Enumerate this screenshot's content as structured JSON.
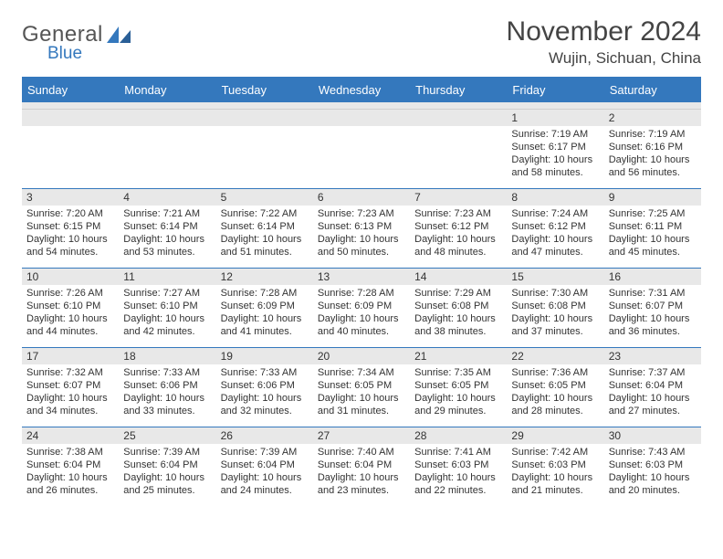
{
  "logo": {
    "word1": "General",
    "word2": "Blue"
  },
  "title": "November 2024",
  "location": "Wujin, Sichuan, China",
  "header_bg": "#3478bd",
  "border_color": "#3478bd",
  "band_bg": "#e8e8e8",
  "text_color": "#333333",
  "weekdays": [
    "Sunday",
    "Monday",
    "Tuesday",
    "Wednesday",
    "Thursday",
    "Friday",
    "Saturday"
  ],
  "weeks": [
    [
      null,
      null,
      null,
      null,
      null,
      {
        "n": "1",
        "sr": "Sunrise: 7:19 AM",
        "ss": "Sunset: 6:17 PM",
        "d1": "Daylight: 10 hours",
        "d2": "and 58 minutes."
      },
      {
        "n": "2",
        "sr": "Sunrise: 7:19 AM",
        "ss": "Sunset: 6:16 PM",
        "d1": "Daylight: 10 hours",
        "d2": "and 56 minutes."
      }
    ],
    [
      {
        "n": "3",
        "sr": "Sunrise: 7:20 AM",
        "ss": "Sunset: 6:15 PM",
        "d1": "Daylight: 10 hours",
        "d2": "and 54 minutes."
      },
      {
        "n": "4",
        "sr": "Sunrise: 7:21 AM",
        "ss": "Sunset: 6:14 PM",
        "d1": "Daylight: 10 hours",
        "d2": "and 53 minutes."
      },
      {
        "n": "5",
        "sr": "Sunrise: 7:22 AM",
        "ss": "Sunset: 6:14 PM",
        "d1": "Daylight: 10 hours",
        "d2": "and 51 minutes."
      },
      {
        "n": "6",
        "sr": "Sunrise: 7:23 AM",
        "ss": "Sunset: 6:13 PM",
        "d1": "Daylight: 10 hours",
        "d2": "and 50 minutes."
      },
      {
        "n": "7",
        "sr": "Sunrise: 7:23 AM",
        "ss": "Sunset: 6:12 PM",
        "d1": "Daylight: 10 hours",
        "d2": "and 48 minutes."
      },
      {
        "n": "8",
        "sr": "Sunrise: 7:24 AM",
        "ss": "Sunset: 6:12 PM",
        "d1": "Daylight: 10 hours",
        "d2": "and 47 minutes."
      },
      {
        "n": "9",
        "sr": "Sunrise: 7:25 AM",
        "ss": "Sunset: 6:11 PM",
        "d1": "Daylight: 10 hours",
        "d2": "and 45 minutes."
      }
    ],
    [
      {
        "n": "10",
        "sr": "Sunrise: 7:26 AM",
        "ss": "Sunset: 6:10 PM",
        "d1": "Daylight: 10 hours",
        "d2": "and 44 minutes."
      },
      {
        "n": "11",
        "sr": "Sunrise: 7:27 AM",
        "ss": "Sunset: 6:10 PM",
        "d1": "Daylight: 10 hours",
        "d2": "and 42 minutes."
      },
      {
        "n": "12",
        "sr": "Sunrise: 7:28 AM",
        "ss": "Sunset: 6:09 PM",
        "d1": "Daylight: 10 hours",
        "d2": "and 41 minutes."
      },
      {
        "n": "13",
        "sr": "Sunrise: 7:28 AM",
        "ss": "Sunset: 6:09 PM",
        "d1": "Daylight: 10 hours",
        "d2": "and 40 minutes."
      },
      {
        "n": "14",
        "sr": "Sunrise: 7:29 AM",
        "ss": "Sunset: 6:08 PM",
        "d1": "Daylight: 10 hours",
        "d2": "and 38 minutes."
      },
      {
        "n": "15",
        "sr": "Sunrise: 7:30 AM",
        "ss": "Sunset: 6:08 PM",
        "d1": "Daylight: 10 hours",
        "d2": "and 37 minutes."
      },
      {
        "n": "16",
        "sr": "Sunrise: 7:31 AM",
        "ss": "Sunset: 6:07 PM",
        "d1": "Daylight: 10 hours",
        "d2": "and 36 minutes."
      }
    ],
    [
      {
        "n": "17",
        "sr": "Sunrise: 7:32 AM",
        "ss": "Sunset: 6:07 PM",
        "d1": "Daylight: 10 hours",
        "d2": "and 34 minutes."
      },
      {
        "n": "18",
        "sr": "Sunrise: 7:33 AM",
        "ss": "Sunset: 6:06 PM",
        "d1": "Daylight: 10 hours",
        "d2": "and 33 minutes."
      },
      {
        "n": "19",
        "sr": "Sunrise: 7:33 AM",
        "ss": "Sunset: 6:06 PM",
        "d1": "Daylight: 10 hours",
        "d2": "and 32 minutes."
      },
      {
        "n": "20",
        "sr": "Sunrise: 7:34 AM",
        "ss": "Sunset: 6:05 PM",
        "d1": "Daylight: 10 hours",
        "d2": "and 31 minutes."
      },
      {
        "n": "21",
        "sr": "Sunrise: 7:35 AM",
        "ss": "Sunset: 6:05 PM",
        "d1": "Daylight: 10 hours",
        "d2": "and 29 minutes."
      },
      {
        "n": "22",
        "sr": "Sunrise: 7:36 AM",
        "ss": "Sunset: 6:05 PM",
        "d1": "Daylight: 10 hours",
        "d2": "and 28 minutes."
      },
      {
        "n": "23",
        "sr": "Sunrise: 7:37 AM",
        "ss": "Sunset: 6:04 PM",
        "d1": "Daylight: 10 hours",
        "d2": "and 27 minutes."
      }
    ],
    [
      {
        "n": "24",
        "sr": "Sunrise: 7:38 AM",
        "ss": "Sunset: 6:04 PM",
        "d1": "Daylight: 10 hours",
        "d2": "and 26 minutes."
      },
      {
        "n": "25",
        "sr": "Sunrise: 7:39 AM",
        "ss": "Sunset: 6:04 PM",
        "d1": "Daylight: 10 hours",
        "d2": "and 25 minutes."
      },
      {
        "n": "26",
        "sr": "Sunrise: 7:39 AM",
        "ss": "Sunset: 6:04 PM",
        "d1": "Daylight: 10 hours",
        "d2": "and 24 minutes."
      },
      {
        "n": "27",
        "sr": "Sunrise: 7:40 AM",
        "ss": "Sunset: 6:04 PM",
        "d1": "Daylight: 10 hours",
        "d2": "and 23 minutes."
      },
      {
        "n": "28",
        "sr": "Sunrise: 7:41 AM",
        "ss": "Sunset: 6:03 PM",
        "d1": "Daylight: 10 hours",
        "d2": "and 22 minutes."
      },
      {
        "n": "29",
        "sr": "Sunrise: 7:42 AM",
        "ss": "Sunset: 6:03 PM",
        "d1": "Daylight: 10 hours",
        "d2": "and 21 minutes."
      },
      {
        "n": "30",
        "sr": "Sunrise: 7:43 AM",
        "ss": "Sunset: 6:03 PM",
        "d1": "Daylight: 10 hours",
        "d2": "and 20 minutes."
      }
    ]
  ]
}
